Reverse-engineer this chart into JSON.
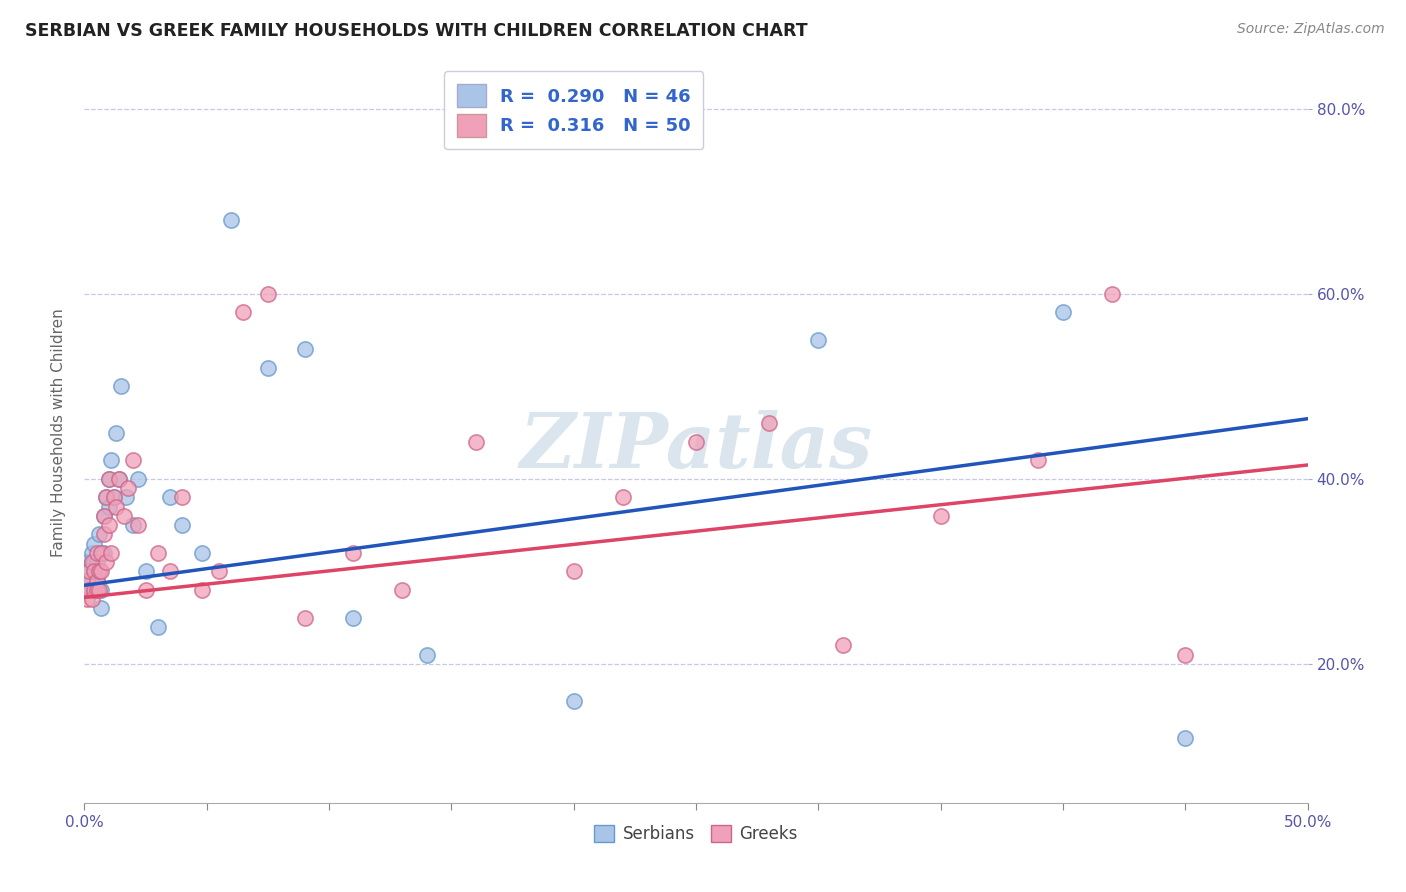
{
  "title": "SERBIAN VS GREEK FAMILY HOUSEHOLDS WITH CHILDREN CORRELATION CHART",
  "source": "Source: ZipAtlas.com",
  "ylabel": "Family Households with Children",
  "xlim": [
    0.0,
    0.5
  ],
  "ylim": [
    0.05,
    0.85
  ],
  "xtick_positions": [
    0.0,
    0.05,
    0.1,
    0.15,
    0.2,
    0.25,
    0.3,
    0.35,
    0.4,
    0.45,
    0.5
  ],
  "xtick_edge_labels": {
    "0.0": "0.0%",
    "0.5": "50.0%"
  },
  "yticks": [
    0.2,
    0.4,
    0.6,
    0.8
  ],
  "ytick_labels": [
    "20.0%",
    "40.0%",
    "60.0%",
    "80.0%"
  ],
  "background_color": "#ffffff",
  "grid_color": "#c8c8e8",
  "legend_label1": "R =  0.290   N = 46",
  "legend_label2": "R =  0.316   N = 50",
  "serbian_color": "#aac4e8",
  "greek_color": "#f0a0b8",
  "line_serbian_color": "#2255bb",
  "line_greek_color": "#dd4466",
  "scatter_size": 120,
  "watermark": "ZIPatlas",
  "serbians_label": "Serbians",
  "greeks_label": "Greeks",
  "serbian_x": [
    0.001,
    0.001,
    0.002,
    0.002,
    0.003,
    0.003,
    0.003,
    0.004,
    0.004,
    0.004,
    0.004,
    0.005,
    0.005,
    0.005,
    0.005,
    0.006,
    0.006,
    0.007,
    0.007,
    0.008,
    0.008,
    0.009,
    0.01,
    0.01,
    0.011,
    0.012,
    0.013,
    0.014,
    0.015,
    0.017,
    0.02,
    0.022,
    0.025,
    0.03,
    0.035,
    0.04,
    0.048,
    0.06,
    0.075,
    0.09,
    0.11,
    0.14,
    0.2,
    0.3,
    0.4,
    0.45
  ],
  "serbian_y": [
    0.31,
    0.29,
    0.3,
    0.28,
    0.31,
    0.29,
    0.32,
    0.3,
    0.28,
    0.31,
    0.33,
    0.3,
    0.29,
    0.31,
    0.28,
    0.34,
    0.3,
    0.28,
    0.26,
    0.36,
    0.32,
    0.38,
    0.4,
    0.37,
    0.42,
    0.38,
    0.45,
    0.4,
    0.5,
    0.38,
    0.35,
    0.4,
    0.3,
    0.24,
    0.38,
    0.35,
    0.32,
    0.68,
    0.52,
    0.54,
    0.25,
    0.21,
    0.16,
    0.55,
    0.58,
    0.12
  ],
  "greek_x": [
    0.001,
    0.001,
    0.002,
    0.002,
    0.003,
    0.003,
    0.004,
    0.004,
    0.005,
    0.005,
    0.005,
    0.006,
    0.006,
    0.007,
    0.007,
    0.008,
    0.008,
    0.009,
    0.009,
    0.01,
    0.01,
    0.011,
    0.012,
    0.013,
    0.014,
    0.016,
    0.018,
    0.02,
    0.022,
    0.025,
    0.03,
    0.035,
    0.04,
    0.048,
    0.055,
    0.065,
    0.075,
    0.09,
    0.11,
    0.13,
    0.16,
    0.2,
    0.22,
    0.25,
    0.28,
    0.31,
    0.35,
    0.39,
    0.42,
    0.45
  ],
  "greek_y": [
    0.29,
    0.27,
    0.28,
    0.3,
    0.27,
    0.31,
    0.28,
    0.3,
    0.29,
    0.32,
    0.28,
    0.3,
    0.28,
    0.32,
    0.3,
    0.34,
    0.36,
    0.31,
    0.38,
    0.4,
    0.35,
    0.32,
    0.38,
    0.37,
    0.4,
    0.36,
    0.39,
    0.42,
    0.35,
    0.28,
    0.32,
    0.3,
    0.38,
    0.28,
    0.3,
    0.58,
    0.6,
    0.25,
    0.32,
    0.28,
    0.44,
    0.3,
    0.38,
    0.44,
    0.46,
    0.22,
    0.36,
    0.42,
    0.6,
    0.21
  ]
}
